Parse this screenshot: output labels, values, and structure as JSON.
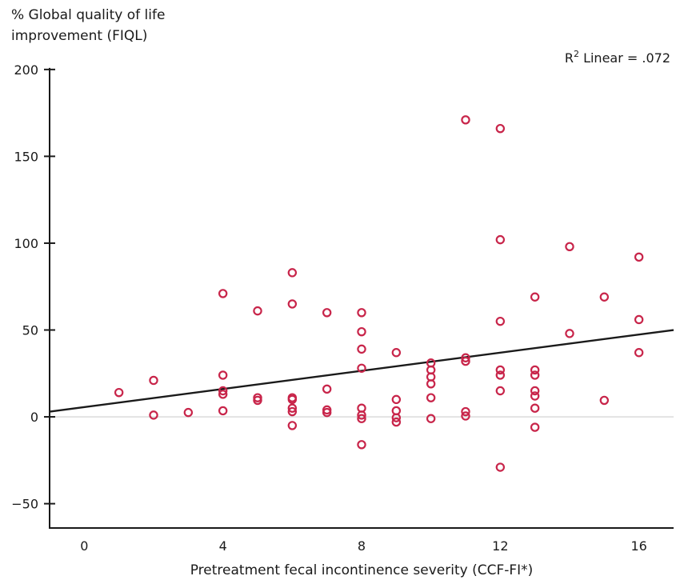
{
  "chart_data": {
    "type": "scatter",
    "title": "",
    "ylabel_lines": [
      "% Global quality of life",
      "improvement (FIQL)"
    ],
    "xlabel": "Pretreatment fecal incontinence severity (CCF-FI*)",
    "annotation": {
      "main": "R",
      "sup": "2",
      "rest": " Linear = .072"
    },
    "xlim": [
      -1,
      17
    ],
    "ylim": [
      -64,
      205
    ],
    "x_ticks": [
      0,
      4,
      8,
      12,
      16
    ],
    "x_tick_labels": [
      "0",
      "4",
      "8",
      "12",
      "16"
    ],
    "y_ticks": [
      -50,
      0,
      50,
      100,
      150,
      200
    ],
    "y_tick_labels": [
      "−50",
      "0",
      "50",
      "100",
      "150",
      "200"
    ],
    "grid": false,
    "point_color": "#c8254a",
    "fit_line": {
      "x": [
        -1,
        17
      ],
      "y": [
        3,
        50
      ]
    },
    "points": [
      {
        "x": 1,
        "y": 14
      },
      {
        "x": 2,
        "y": 21
      },
      {
        "x": 2,
        "y": 1
      },
      {
        "x": 3,
        "y": 2.5
      },
      {
        "x": 4,
        "y": 71
      },
      {
        "x": 4,
        "y": 24
      },
      {
        "x": 4,
        "y": 15
      },
      {
        "x": 4,
        "y": 13
      },
      {
        "x": 4,
        "y": 3.5
      },
      {
        "x": 5,
        "y": 61
      },
      {
        "x": 5,
        "y": 11
      },
      {
        "x": 5,
        "y": 9.5
      },
      {
        "x": 6,
        "y": 83
      },
      {
        "x": 6,
        "y": 65
      },
      {
        "x": 6,
        "y": 11
      },
      {
        "x": 6,
        "y": 10
      },
      {
        "x": 6,
        "y": 5
      },
      {
        "x": 6,
        "y": 3
      },
      {
        "x": 6,
        "y": -5
      },
      {
        "x": 7,
        "y": 60
      },
      {
        "x": 7,
        "y": 16
      },
      {
        "x": 7,
        "y": 4
      },
      {
        "x": 7,
        "y": 2.5
      },
      {
        "x": 8,
        "y": 60
      },
      {
        "x": 8,
        "y": 49
      },
      {
        "x": 8,
        "y": 39
      },
      {
        "x": 8,
        "y": 28
      },
      {
        "x": 8,
        "y": 5
      },
      {
        "x": 8,
        "y": 1
      },
      {
        "x": 8,
        "y": -1
      },
      {
        "x": 8,
        "y": -16
      },
      {
        "x": 9,
        "y": 37
      },
      {
        "x": 9,
        "y": 10
      },
      {
        "x": 9,
        "y": 3.5
      },
      {
        "x": 9,
        "y": -0.5
      },
      {
        "x": 9,
        "y": -3
      },
      {
        "x": 10,
        "y": 31
      },
      {
        "x": 10,
        "y": 27
      },
      {
        "x": 10,
        "y": 23
      },
      {
        "x": 10,
        "y": 19
      },
      {
        "x": 10,
        "y": 11
      },
      {
        "x": 10,
        "y": -1
      },
      {
        "x": 11,
        "y": 171
      },
      {
        "x": 11,
        "y": 34
      },
      {
        "x": 11,
        "y": 32
      },
      {
        "x": 11,
        "y": 3
      },
      {
        "x": 11,
        "y": 0.5
      },
      {
        "x": 12,
        "y": 166
      },
      {
        "x": 12,
        "y": 102
      },
      {
        "x": 12,
        "y": 55
      },
      {
        "x": 12,
        "y": 27
      },
      {
        "x": 12,
        "y": 24
      },
      {
        "x": 12,
        "y": 15
      },
      {
        "x": 12,
        "y": -29
      },
      {
        "x": 13,
        "y": 69
      },
      {
        "x": 13,
        "y": 27
      },
      {
        "x": 13,
        "y": 24
      },
      {
        "x": 13,
        "y": 15
      },
      {
        "x": 13,
        "y": 12
      },
      {
        "x": 13,
        "y": 5
      },
      {
        "x": 13,
        "y": -6
      },
      {
        "x": 14,
        "y": 98
      },
      {
        "x": 14,
        "y": 48
      },
      {
        "x": 15,
        "y": 69
      },
      {
        "x": 15,
        "y": 9.5
      },
      {
        "x": 16,
        "y": 92
      },
      {
        "x": 16,
        "y": 56
      },
      {
        "x": 16,
        "y": 37
      }
    ]
  }
}
